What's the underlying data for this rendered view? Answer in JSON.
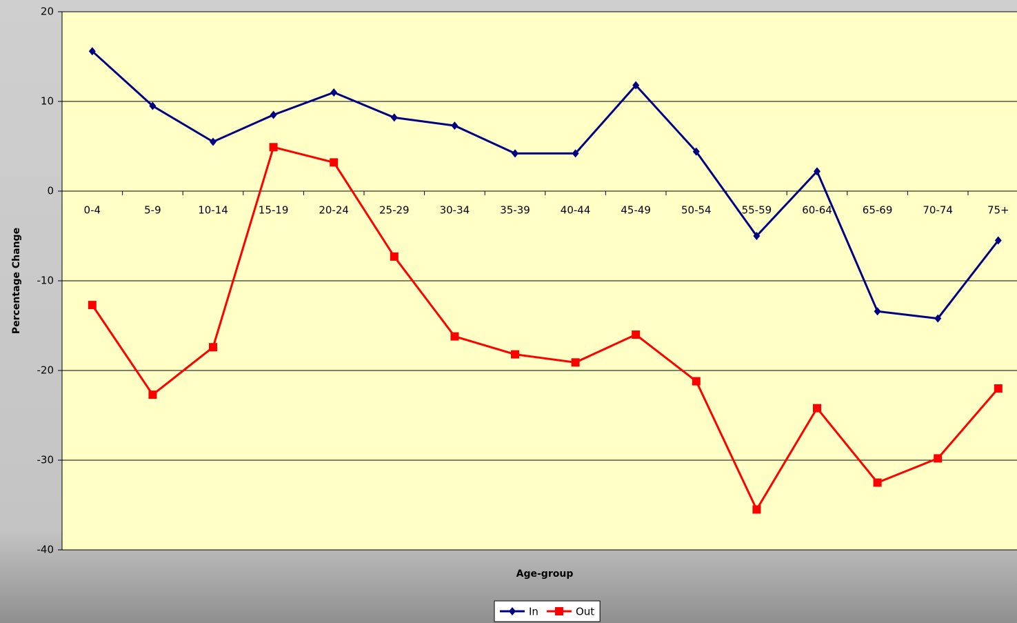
{
  "chart_data": {
    "type": "line",
    "x_label": "Age-group",
    "y_label": "Percentage Change",
    "categories": [
      "0-4",
      "5-9",
      "10-14",
      "15-19",
      "20-24",
      "25-29",
      "30-34",
      "35-39",
      "40-44",
      "45-49",
      "50-54",
      "55-59",
      "60-64",
      "65-69",
      "70-74",
      "75+"
    ],
    "series": [
      {
        "name": "In",
        "color": "#000080",
        "marker": "diamond",
        "values": [
          15.6,
          9.5,
          5.5,
          8.5,
          11.0,
          8.2,
          7.3,
          4.2,
          4.2,
          11.8,
          4.4,
          -5.0,
          2.2,
          -13.4,
          -14.2,
          -5.5
        ]
      },
      {
        "name": "Out",
        "color": "#ff0000",
        "marker": "square",
        "values": [
          -12.7,
          -22.7,
          -17.4,
          4.9,
          3.2,
          -7.3,
          -16.2,
          -18.2,
          -19.1,
          -16.0,
          -21.2,
          -35.5,
          -24.2,
          -32.5,
          -29.8,
          -22.0
        ]
      }
    ],
    "ylim": [
      -40,
      20
    ],
    "yticks": [
      -40,
      -30,
      -20,
      -10,
      0,
      10,
      20
    ],
    "grid": true,
    "legend": "bottom"
  }
}
